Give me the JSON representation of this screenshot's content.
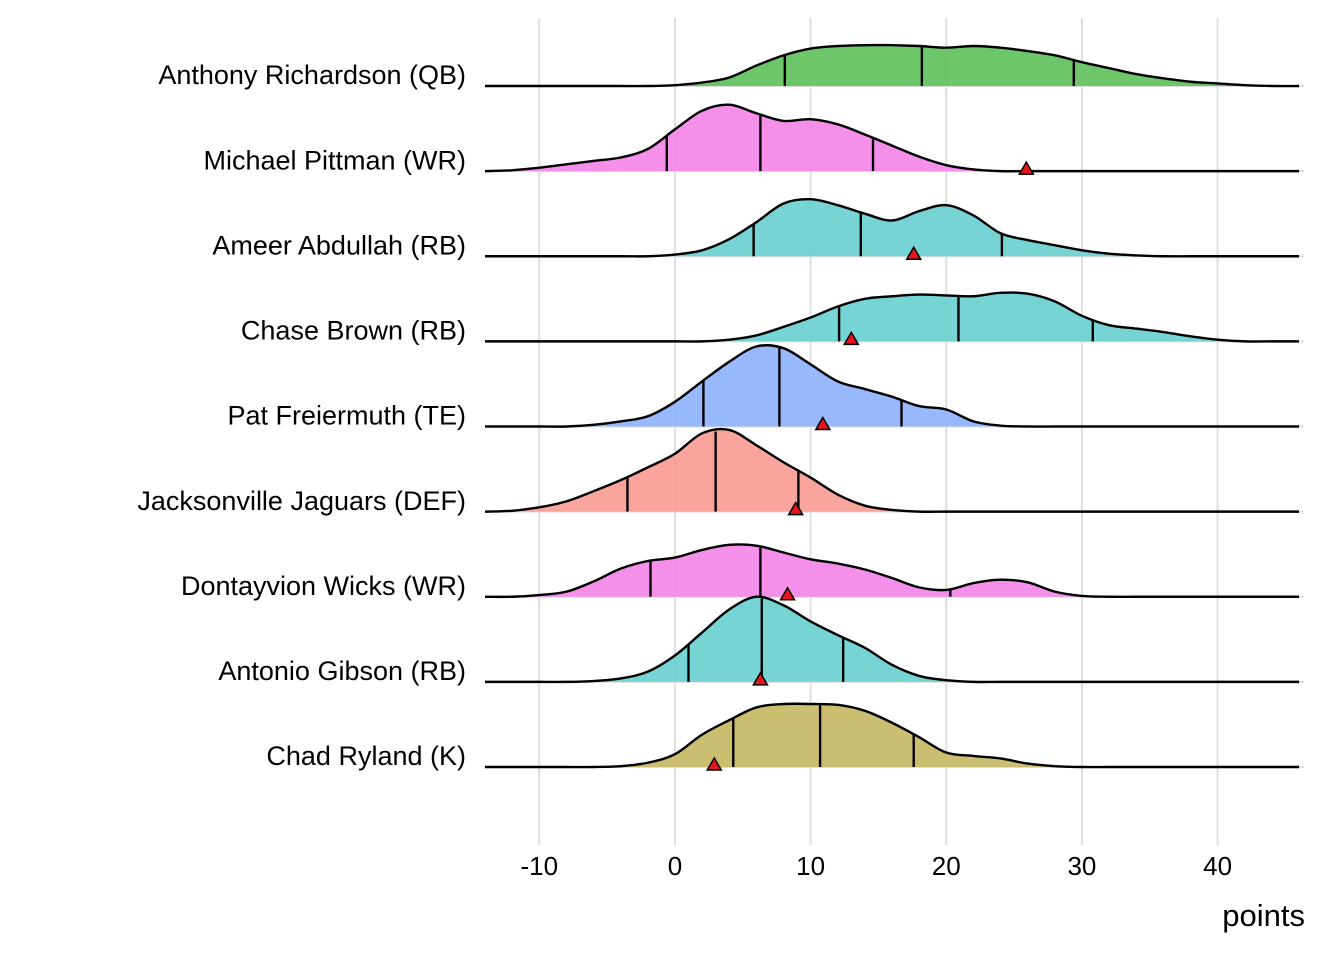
{
  "chart_data": {
    "type": "ridgeline",
    "x_label": "points",
    "xlim": [
      -14,
      46
    ],
    "xticks": [
      -10,
      0,
      10,
      20,
      30,
      40
    ],
    "grid": true,
    "marker_color": "#e8141b",
    "x": [
      -14,
      -12,
      -10,
      -8,
      -6,
      -4,
      -2,
      0,
      2,
      4,
      6,
      8,
      10,
      12,
      14,
      16,
      18,
      20,
      22,
      24,
      26,
      28,
      30,
      32,
      34,
      36,
      38,
      40,
      42,
      44,
      46
    ],
    "series": [
      {
        "name": "Anthony Richardson (QB)",
        "color": "#61c15c",
        "quantiles": [
          8.1,
          18.2,
          29.4
        ],
        "actual": null,
        "density": [
          0,
          0,
          0,
          0,
          0,
          0,
          0,
          0.01,
          0.04,
          0.1,
          0.24,
          0.36,
          0.44,
          0.47,
          0.48,
          0.48,
          0.47,
          0.45,
          0.47,
          0.45,
          0.41,
          0.36,
          0.28,
          0.21,
          0.14,
          0.09,
          0.05,
          0.03,
          0.01,
          0,
          0
        ]
      },
      {
        "name": "Michael Pittman (WR)",
        "color": "#f386e8",
        "quantiles": [
          -0.6,
          6.3,
          14.6
        ],
        "actual": 25.9,
        "density": [
          0,
          0.01,
          0.04,
          0.08,
          0.12,
          0.16,
          0.26,
          0.49,
          0.71,
          0.78,
          0.68,
          0.59,
          0.61,
          0.55,
          0.43,
          0.3,
          0.17,
          0.07,
          0.02,
          0,
          0,
          0,
          0,
          0,
          0,
          0,
          0,
          0,
          0,
          0,
          0
        ]
      },
      {
        "name": "Ameer Abdullah (RB)",
        "color": "#6bd0d1",
        "quantiles": [
          5.8,
          13.7,
          24.1
        ],
        "actual": 17.6,
        "density": [
          0,
          0,
          0,
          0,
          0,
          0,
          0,
          0.02,
          0.07,
          0.2,
          0.4,
          0.62,
          0.67,
          0.6,
          0.5,
          0.42,
          0.53,
          0.6,
          0.48,
          0.27,
          0.19,
          0.13,
          0.07,
          0.03,
          0.01,
          0,
          0,
          0,
          0,
          0,
          0
        ]
      },
      {
        "name": "Chase Brown (RB)",
        "color": "#6bd0d1",
        "quantiles": [
          12.1,
          20.9,
          30.8
        ],
        "actual": 13.0,
        "density": [
          0,
          0,
          0,
          0,
          0,
          0,
          0,
          0,
          0,
          0.02,
          0.07,
          0.17,
          0.28,
          0.41,
          0.5,
          0.53,
          0.55,
          0.54,
          0.53,
          0.57,
          0.56,
          0.47,
          0.3,
          0.19,
          0.15,
          0.11,
          0.06,
          0.02,
          0,
          0,
          0
        ]
      },
      {
        "name": "Pat Freiermuth (TE)",
        "color": "#8fb2ff",
        "quantiles": [
          2.1,
          7.7,
          16.7
        ],
        "actual": 10.9,
        "density": [
          0,
          0,
          0,
          0,
          0.02,
          0.06,
          0.12,
          0.29,
          0.53,
          0.76,
          0.94,
          0.92,
          0.73,
          0.53,
          0.44,
          0.35,
          0.24,
          0.2,
          0.06,
          0.01,
          0,
          0,
          0,
          0,
          0,
          0,
          0,
          0,
          0,
          0,
          0
        ]
      },
      {
        "name": "Jacksonville Jaguars (DEF)",
        "color": "#f89c95",
        "quantiles": [
          -3.5,
          3.0,
          9.1
        ],
        "actual": 8.9,
        "density": [
          0,
          0.01,
          0.05,
          0.12,
          0.24,
          0.37,
          0.52,
          0.68,
          0.92,
          0.96,
          0.78,
          0.58,
          0.4,
          0.2,
          0.07,
          0.02,
          0,
          0,
          0,
          0,
          0,
          0,
          0,
          0,
          0,
          0,
          0,
          0,
          0,
          0,
          0
        ]
      },
      {
        "name": "Dontayvion Wicks (WR)",
        "color": "#f386e8",
        "quantiles": [
          -1.8,
          6.3,
          20.3
        ],
        "actual": 8.3,
        "density": [
          0,
          0,
          0.02,
          0.06,
          0.18,
          0.33,
          0.42,
          0.46,
          0.55,
          0.61,
          0.6,
          0.52,
          0.44,
          0.39,
          0.32,
          0.22,
          0.11,
          0.08,
          0.16,
          0.2,
          0.17,
          0.06,
          0.01,
          0,
          0,
          0,
          0,
          0,
          0,
          0,
          0
        ]
      },
      {
        "name": "Antonio Gibson (RB)",
        "color": "#6bd0d1",
        "quantiles": [
          1.0,
          6.4,
          12.4
        ],
        "actual": 6.3,
        "density": [
          0,
          0,
          0,
          0,
          0.01,
          0.04,
          0.12,
          0.31,
          0.58,
          0.85,
          1.0,
          0.9,
          0.71,
          0.55,
          0.4,
          0.2,
          0.07,
          0.02,
          0,
          0,
          0,
          0,
          0,
          0,
          0,
          0,
          0,
          0,
          0,
          0,
          0
        ]
      },
      {
        "name": "Chad Ryland (K)",
        "color": "#c8b964",
        "quantiles": [
          4.3,
          10.7,
          17.6
        ],
        "actual": 2.9,
        "density": [
          0,
          0,
          0,
          0,
          0,
          0.01,
          0.05,
          0.15,
          0.38,
          0.55,
          0.7,
          0.74,
          0.74,
          0.73,
          0.66,
          0.52,
          0.35,
          0.17,
          0.13,
          0.1,
          0.04,
          0.01,
          0,
          0,
          0,
          0,
          0,
          0,
          0,
          0,
          0
        ]
      }
    ]
  }
}
